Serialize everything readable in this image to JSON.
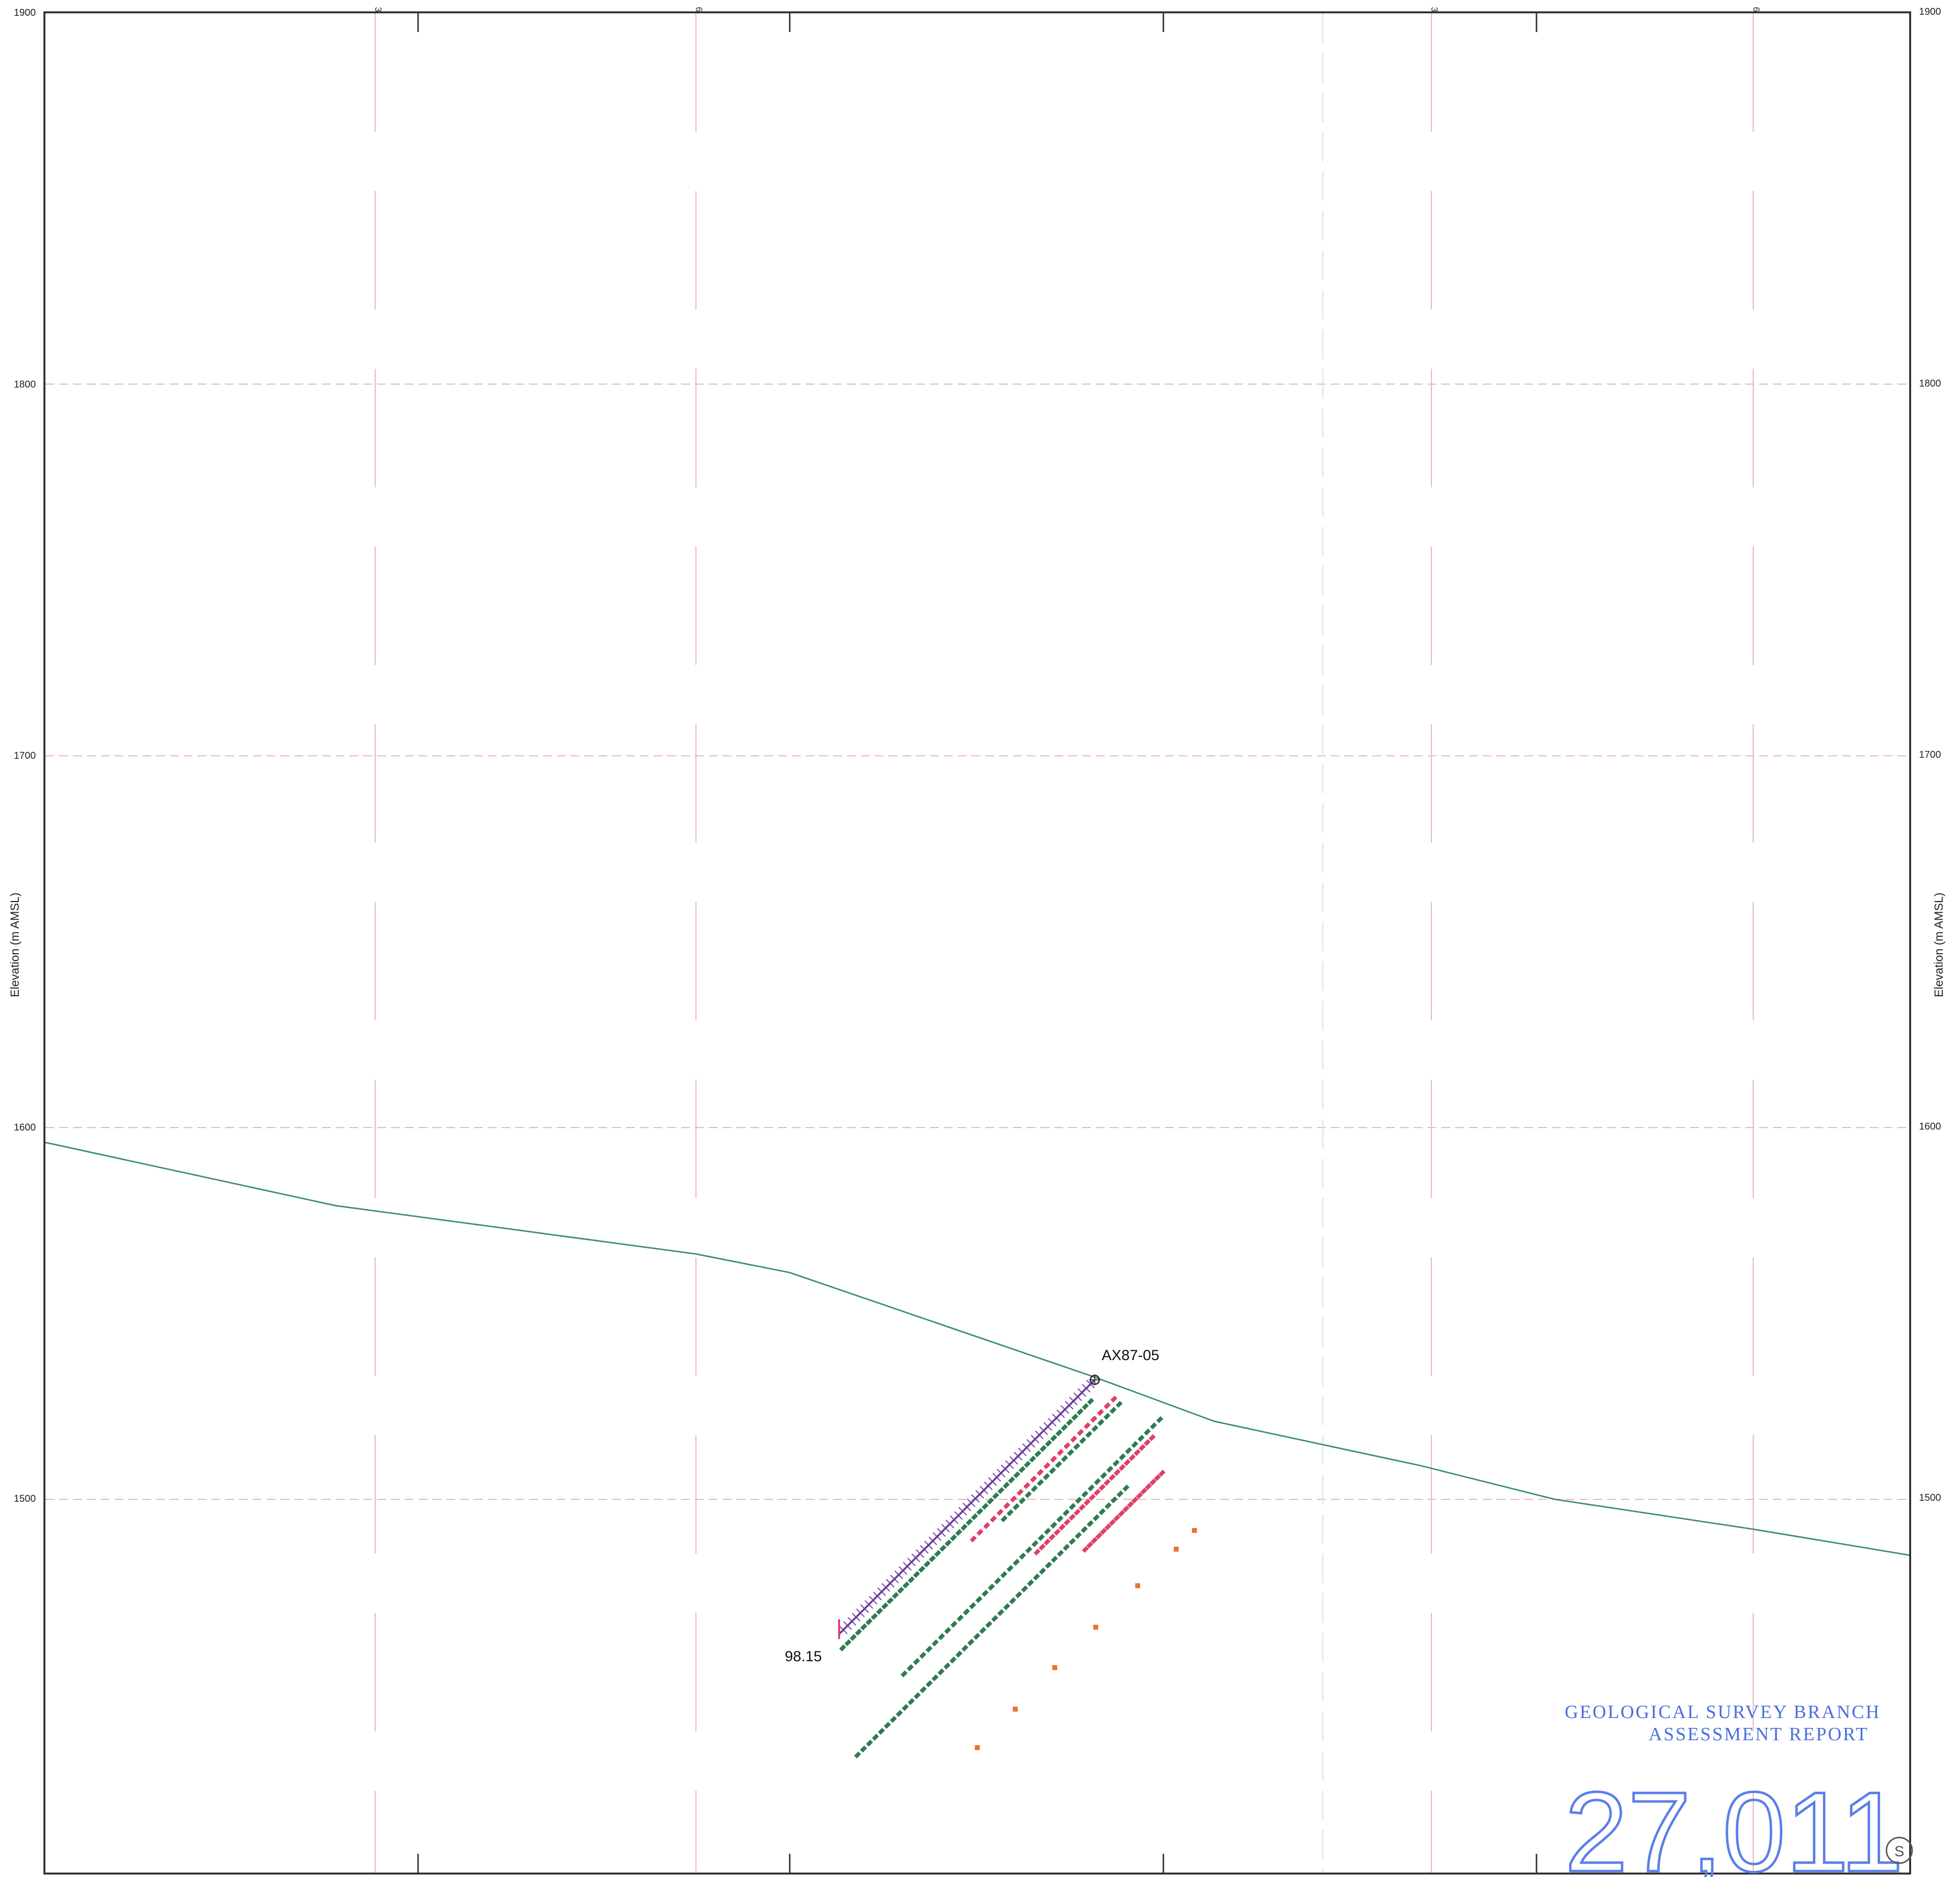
{
  "section": {
    "y_axis_title": "Elevation (m AMSL)",
    "elevation_ticks": [
      "1900",
      "1800",
      "1700",
      "1600",
      "1500"
    ],
    "elevation_range": [
      1400,
      1900
    ],
    "top_tick_labels": [
      "3",
      "6",
      "3",
      "6"
    ]
  },
  "drillhole": {
    "name": "AX87-05",
    "depth_label": "98.15"
  },
  "topography": {
    "color": "#3f8f6f",
    "elevations": [
      1596,
      1579,
      1566,
      1561,
      1533,
      1521,
      1509,
      1500,
      1492,
      1485
    ]
  },
  "colors": {
    "grid": "#e8b4b4",
    "frame": "#333333",
    "assay_green": "#2e7d4f",
    "assay_red": "#e0406a",
    "assay_orange": "#f07030",
    "hole_trace": "#6a3fa0",
    "stamp": "#4a6ee0"
  },
  "stamp": {
    "line1": "GEOLOGICAL SURVEY BRANCH",
    "line2": "ASSESSMENT REPORT",
    "number": "27,011",
    "suffix": "S"
  }
}
